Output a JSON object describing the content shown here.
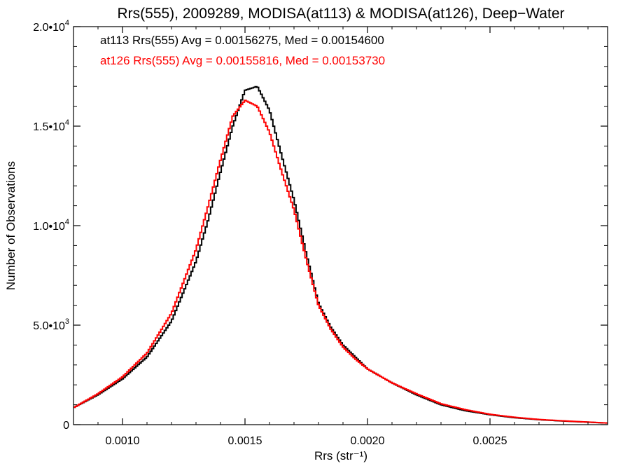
{
  "chart_data": {
    "type": "line",
    "title": "Rrs(555), 2009289, MODISA(at113) & MODISA(at126), Deep−Water",
    "xlabel": "Rrs (str⁻¹)",
    "ylabel": "Number of Observations",
    "xlim": [
      0.0008,
      0.00298
    ],
    "ylim": [
      0,
      20000
    ],
    "x_ticks": [
      {
        "value": 0.001,
        "label": "0.0010"
      },
      {
        "value": 0.0015,
        "label": "0.0015"
      },
      {
        "value": 0.002,
        "label": "0.0020"
      },
      {
        "value": 0.0025,
        "label": "0.0025"
      }
    ],
    "y_ticks": [
      {
        "value": 0,
        "base": "0",
        "exp": ""
      },
      {
        "value": 5000,
        "base": "5.0•10",
        "exp": "3"
      },
      {
        "value": 10000,
        "base": "1.0•10",
        "exp": "4"
      },
      {
        "value": 15000,
        "base": "1.5•10",
        "exp": "4"
      },
      {
        "value": 20000,
        "base": "2.0•10",
        "exp": "4"
      }
    ],
    "grid": false,
    "legend_position": "top-left",
    "series": [
      {
        "name": "at113 Rrs(555) Avg = 0.00156275, Med = 0.00154600",
        "color": "#000000",
        "x": [
          0.0008,
          0.0009,
          0.001,
          0.0011,
          0.0012,
          0.0013,
          0.00135,
          0.0014,
          0.00145,
          0.0015,
          0.00155,
          0.0016,
          0.00165,
          0.0017,
          0.00175,
          0.0018,
          0.00185,
          0.0019,
          0.00195,
          0.002,
          0.0021,
          0.0022,
          0.0023,
          0.0024,
          0.0025,
          0.0026,
          0.0027,
          0.0028,
          0.00298
        ],
        "y": [
          850,
          1500,
          2300,
          3400,
          5200,
          8200,
          10300,
          12700,
          15000,
          16800,
          17000,
          15800,
          13500,
          11300,
          8600,
          6100,
          4900,
          4000,
          3400,
          2800,
          2100,
          1500,
          1000,
          700,
          500,
          350,
          250,
          180,
          80
        ]
      },
      {
        "name": "at126 Rrs(555) Avg = 0.00155816, Med = 0.00153730",
        "color": "#ff0000",
        "x": [
          0.0008,
          0.0009,
          0.001,
          0.0011,
          0.0012,
          0.0013,
          0.00135,
          0.0014,
          0.00145,
          0.0015,
          0.00155,
          0.0016,
          0.00165,
          0.0017,
          0.00175,
          0.0018,
          0.00185,
          0.0019,
          0.00195,
          0.002,
          0.0021,
          0.0022,
          0.0023,
          0.0024,
          0.0025,
          0.0026,
          0.0027,
          0.0028,
          0.00298
        ],
        "y": [
          850,
          1550,
          2400,
          3600,
          5600,
          8800,
          11000,
          13300,
          15500,
          16300,
          16000,
          14700,
          12700,
          10800,
          8300,
          6000,
          4800,
          3900,
          3300,
          2800,
          2100,
          1550,
          1050,
          750,
          520,
          370,
          260,
          190,
          80
        ]
      }
    ],
    "annotations": [
      {
        "text": "at113 Rrs(555) Avg = 0.00156275, Med = 0.00154600",
        "color": "#000000"
      },
      {
        "text": "at126 Rrs(555) Avg = 0.00155816, Med = 0.00153730",
        "color": "#ff0000"
      }
    ]
  }
}
